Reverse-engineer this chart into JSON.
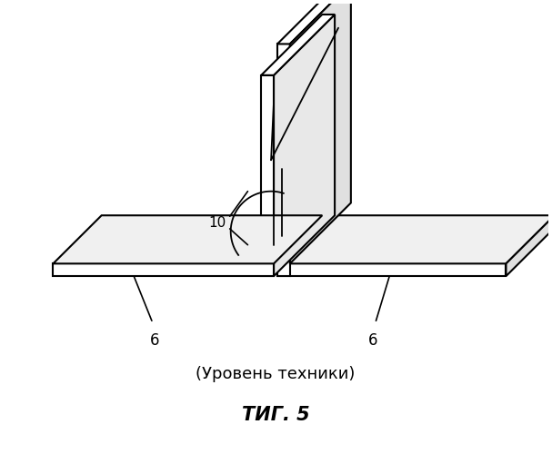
{
  "background_color": "#ffffff",
  "line_color": "#000000",
  "subtitle": "(Уровень техники)",
  "title": "ΤИГ. 5",
  "subtitle_fontsize": 13,
  "title_fontsize": 15
}
